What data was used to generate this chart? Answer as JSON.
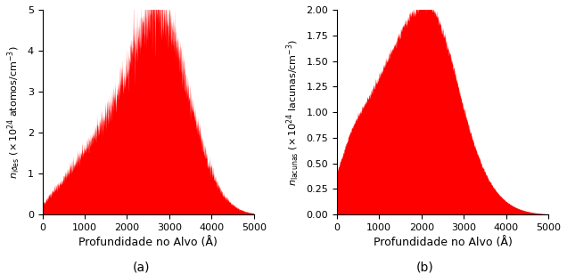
{
  "fig_width": 6.36,
  "fig_height": 3.08,
  "dpi": 100,
  "fill_color": "#ff0000",
  "background_color": "#ffffff",
  "xlabel": "Profundidade no Alvo (Å)",
  "xlabel_fontsize": 9,
  "ylabel_fontsize": 8,
  "xlim": [
    0,
    5000
  ],
  "ylim_a": [
    0,
    5
  ],
  "ylim_b": [
    0,
    2.0
  ],
  "yticks_a": [
    0,
    1,
    2,
    3,
    4,
    5
  ],
  "yticks_b": [
    0.0,
    0.25,
    0.5,
    0.75,
    1.0,
    1.25,
    1.5,
    1.75,
    2.0
  ],
  "xticks": [
    0,
    1000,
    2000,
    3000,
    4000,
    5000
  ],
  "label_a": "(a)",
  "label_b": "(b)",
  "tick_fontsize": 8
}
